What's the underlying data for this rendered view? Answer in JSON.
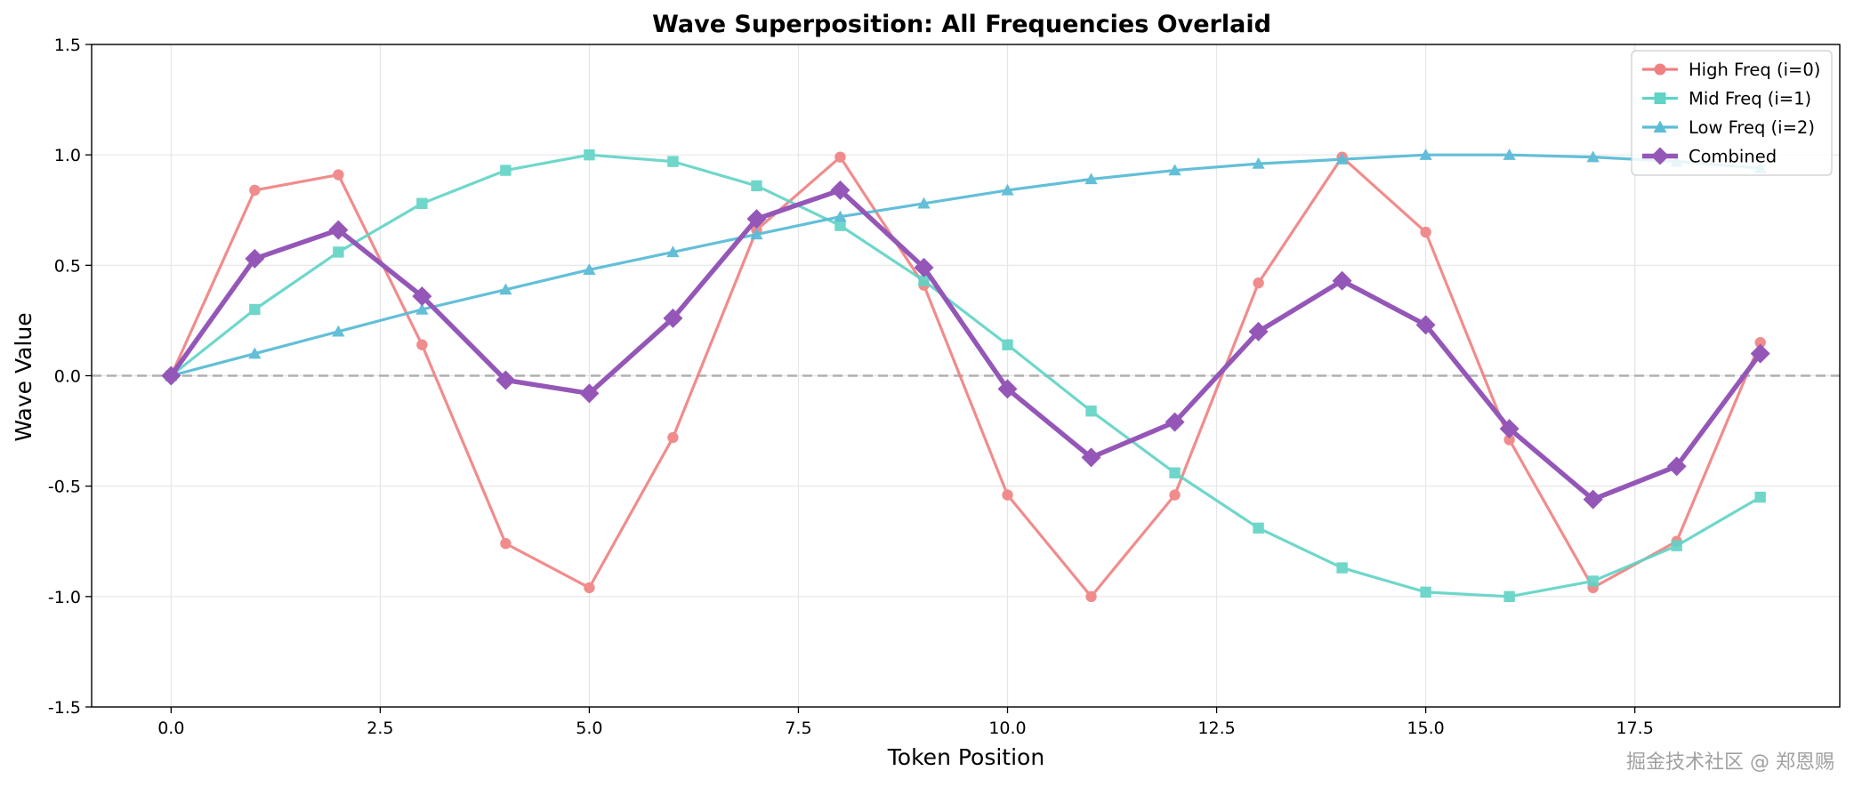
{
  "chart_data": {
    "type": "line",
    "title": "Wave Superposition: All Frequencies Overlaid",
    "xlabel": "Token Position",
    "ylabel": "Wave Value",
    "xlim": [
      -0.95,
      19.95
    ],
    "ylim": [
      -1.5,
      1.5
    ],
    "xticks": [
      0.0,
      2.5,
      5.0,
      7.5,
      10.0,
      12.5,
      15.0,
      17.5
    ],
    "xtick_labels": [
      "0.0",
      "2.5",
      "5.0",
      "7.5",
      "10.0",
      "12.5",
      "15.0",
      "17.5"
    ],
    "yticks": [
      -1.5,
      -1.0,
      -0.5,
      0.0,
      0.5,
      1.0,
      1.5
    ],
    "ytick_labels": [
      "-1.5",
      "-1.0",
      "-0.5",
      "0.0",
      "0.5",
      "1.0",
      "1.5"
    ],
    "grid": true,
    "zero_line": {
      "y": 0.0,
      "style": "dashed",
      "color": "#b0b0b0"
    },
    "legend_position": "top-right",
    "x": [
      0,
      1,
      2,
      3,
      4,
      5,
      6,
      7,
      8,
      9,
      10,
      11,
      12,
      13,
      14,
      15,
      16,
      17,
      18,
      19
    ],
    "series": [
      {
        "name": "High Freq (i=0)",
        "marker": "circle",
        "color": "#F08080",
        "values": [
          0.0,
          0.84,
          0.91,
          0.14,
          -0.76,
          -0.96,
          -0.28,
          0.66,
          0.99,
          0.41,
          -0.54,
          -1.0,
          -0.54,
          0.42,
          0.99,
          0.65,
          -0.29,
          -0.96,
          -0.75,
          0.15
        ]
      },
      {
        "name": "Mid Freq (i=1)",
        "marker": "square",
        "color": "#5FD3C5",
        "values": [
          0.0,
          0.3,
          0.56,
          0.78,
          0.93,
          1.0,
          0.97,
          0.86,
          0.68,
          0.43,
          0.14,
          -0.16,
          -0.44,
          -0.69,
          -0.87,
          -0.98,
          -1.0,
          -0.93,
          -0.77,
          -0.55
        ]
      },
      {
        "name": "Low Freq (i=2)",
        "marker": "triangle",
        "color": "#5BBCD6",
        "values": [
          0.0,
          0.1,
          0.2,
          0.3,
          0.39,
          0.48,
          0.56,
          0.64,
          0.72,
          0.78,
          0.84,
          0.89,
          0.93,
          0.96,
          0.98,
          1.0,
          1.0,
          0.99,
          0.97,
          0.94
        ]
      },
      {
        "name": "Combined",
        "marker": "diamond",
        "color": "#9457B8",
        "values": [
          0.0,
          0.53,
          0.66,
          0.36,
          -0.02,
          -0.08,
          0.26,
          0.71,
          0.84,
          0.49,
          -0.06,
          -0.37,
          -0.21,
          0.2,
          0.43,
          0.23,
          -0.24,
          -0.56,
          -0.41,
          0.1
        ]
      }
    ]
  },
  "watermark": "掘金技术社区 @ 郑恩赐"
}
